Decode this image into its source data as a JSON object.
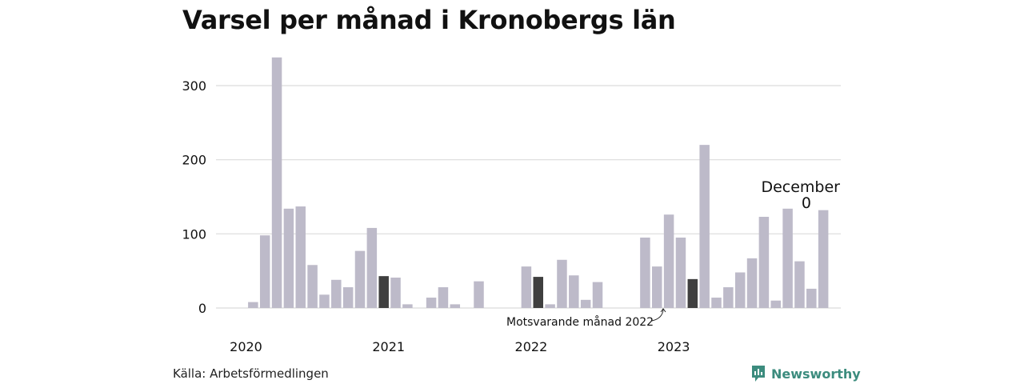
{
  "title": "Varsel per månad i Kronobergs län",
  "source": "Källa: Arbetsförmedlingen",
  "brand": {
    "name": "Newsworthy",
    "icon": "newsworthy-logo-icon",
    "color": "#3c8c7e"
  },
  "colors": {
    "bar": "#bdbac9",
    "highlight": "#3f3f3f",
    "grid": "#dcdcdc"
  },
  "chart_data": {
    "type": "bar",
    "title": "Varsel per månad i Kronobergs län",
    "xlabel": "",
    "ylabel": "",
    "ylim": [
      0,
      340
    ],
    "yticks": [
      0,
      100,
      200,
      300
    ],
    "year_labels": [
      "2020",
      "2021",
      "2022",
      "2023"
    ],
    "grid": true,
    "values": [
      0,
      8,
      98,
      338,
      134,
      137,
      58,
      18,
      38,
      28,
      77,
      108,
      43,
      41,
      5,
      0,
      14,
      28,
      5,
      0,
      36,
      0,
      0,
      0,
      56,
      42,
      5,
      65,
      44,
      11,
      35,
      0,
      0,
      0,
      95,
      56,
      126,
      95,
      39,
      220,
      14,
      28,
      48,
      67,
      123,
      10,
      134,
      63,
      26,
      132,
      0
    ],
    "highlight_indices": [
      12,
      25,
      38
    ],
    "annotations": {
      "highlight_label": "Motsvarande månad 2022",
      "last_month": "December",
      "last_value": "0"
    }
  }
}
